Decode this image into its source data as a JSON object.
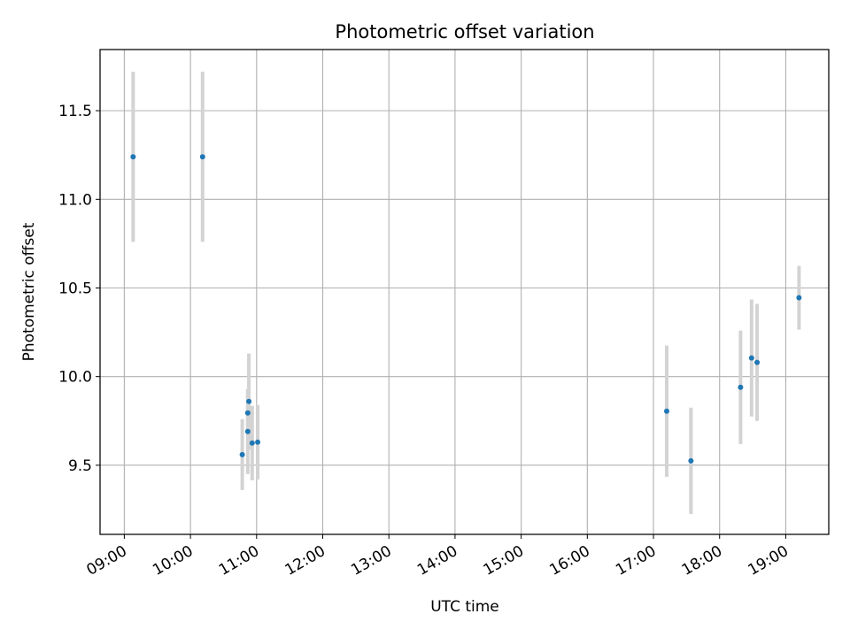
{
  "chart_data": {
    "type": "scatter",
    "title": "Photometric offset variation",
    "xlabel": "UTC time",
    "ylabel": "Photometric offset",
    "x_unit": "hours UTC",
    "xlim": [
      "08:38",
      "19:39"
    ],
    "ylim": [
      9.11,
      11.845
    ],
    "x_ticks": [
      "09:00",
      "10:00",
      "11:00",
      "12:00",
      "13:00",
      "14:00",
      "15:00",
      "16:00",
      "17:00",
      "18:00",
      "19:00"
    ],
    "y_ticks": [
      "9.5",
      "10.0",
      "10.5",
      "11.0",
      "11.5"
    ],
    "grid": true,
    "legend": "none",
    "colors": {
      "points": "#1f77b4",
      "errorbars": "#d3d3d3",
      "grid": "#b0b0b0"
    },
    "series": [
      {
        "points": [
          {
            "x": "09:08",
            "y": 11.24,
            "err": 0.48
          },
          {
            "x": "10:11",
            "y": 11.24,
            "err": 0.48
          },
          {
            "x": "10:47",
            "y": 9.56,
            "err": 0.2
          },
          {
            "x": "10:52",
            "y": 9.69,
            "err": 0.24
          },
          {
            "x": "10:52",
            "y": 9.795,
            "err": 0.13
          },
          {
            "x": "10:53",
            "y": 9.86,
            "err": 0.27
          },
          {
            "x": "10:56",
            "y": 9.625,
            "err": 0.21
          },
          {
            "x": "11:01",
            "y": 9.63,
            "err": 0.21
          },
          {
            "x": "17:12",
            "y": 9.805,
            "err": 0.37
          },
          {
            "x": "17:34",
            "y": 9.525,
            "err": 0.3
          },
          {
            "x": "18:19",
            "y": 9.94,
            "err": 0.32
          },
          {
            "x": "18:29",
            "y": 10.105,
            "err": 0.33
          },
          {
            "x": "18:34",
            "y": 10.08,
            "err": 0.33
          },
          {
            "x": "19:12",
            "y": 10.445,
            "err": 0.18
          }
        ]
      }
    ]
  }
}
